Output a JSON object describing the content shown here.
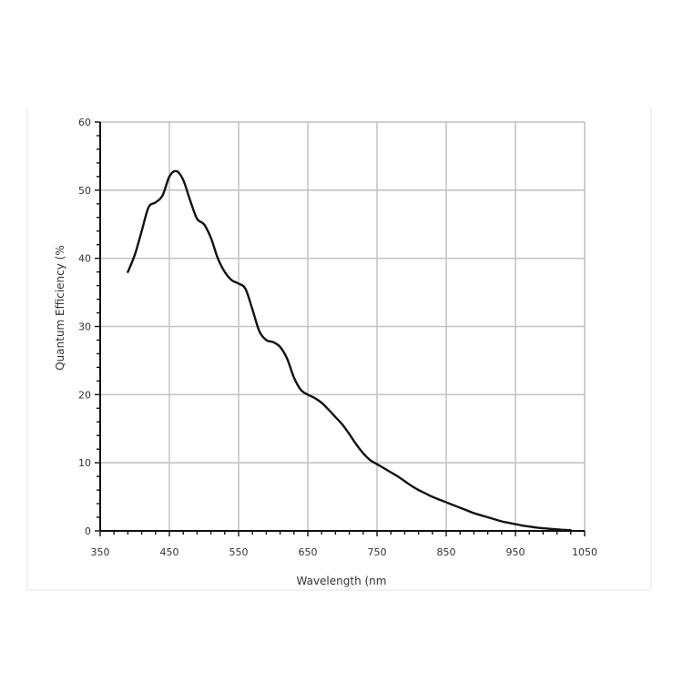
{
  "chart_data": {
    "type": "line",
    "title": "",
    "xlabel": "Wavelength (nm",
    "ylabel": "Quantum Efficiency (%",
    "xlim": [
      350,
      1050
    ],
    "ylim": [
      0,
      60
    ],
    "x_ticks": [
      350,
      450,
      550,
      650,
      750,
      850,
      950,
      1050
    ],
    "y_ticks": [
      0,
      10,
      20,
      30,
      40,
      50,
      60
    ],
    "grid": true,
    "legend": "none",
    "series": [
      {
        "color": "#111111",
        "points": [
          [
            390,
            38.0
          ],
          [
            400,
            40.5
          ],
          [
            410,
            44.0
          ],
          [
            420,
            47.5
          ],
          [
            430,
            48.2
          ],
          [
            440,
            49.2
          ],
          [
            450,
            52.0
          ],
          [
            460,
            52.8
          ],
          [
            470,
            51.5
          ],
          [
            480,
            48.5
          ],
          [
            490,
            45.8
          ],
          [
            500,
            45.0
          ],
          [
            510,
            43.0
          ],
          [
            520,
            40.0
          ],
          [
            530,
            38.0
          ],
          [
            540,
            36.8
          ],
          [
            550,
            36.3
          ],
          [
            560,
            35.5
          ],
          [
            570,
            32.5
          ],
          [
            580,
            29.3
          ],
          [
            590,
            28.0
          ],
          [
            600,
            27.7
          ],
          [
            610,
            27.0
          ],
          [
            620,
            25.3
          ],
          [
            630,
            22.5
          ],
          [
            640,
            20.7
          ],
          [
            650,
            20.0
          ],
          [
            660,
            19.5
          ],
          [
            670,
            18.8
          ],
          [
            680,
            17.8
          ],
          [
            690,
            16.7
          ],
          [
            700,
            15.6
          ],
          [
            710,
            14.2
          ],
          [
            720,
            12.7
          ],
          [
            730,
            11.4
          ],
          [
            740,
            10.4
          ],
          [
            750,
            9.8
          ],
          [
            760,
            9.2
          ],
          [
            770,
            8.6
          ],
          [
            780,
            8.0
          ],
          [
            790,
            7.3
          ],
          [
            800,
            6.6
          ],
          [
            810,
            6.0
          ],
          [
            820,
            5.5
          ],
          [
            830,
            5.0
          ],
          [
            840,
            4.6
          ],
          [
            850,
            4.2
          ],
          [
            860,
            3.8
          ],
          [
            870,
            3.4
          ],
          [
            880,
            3.0
          ],
          [
            890,
            2.6
          ],
          [
            900,
            2.3
          ],
          [
            910,
            2.0
          ],
          [
            920,
            1.7
          ],
          [
            930,
            1.4
          ],
          [
            940,
            1.2
          ],
          [
            950,
            1.0
          ],
          [
            960,
            0.8
          ],
          [
            970,
            0.65
          ],
          [
            980,
            0.5
          ],
          [
            990,
            0.4
          ],
          [
            1000,
            0.3
          ],
          [
            1010,
            0.22
          ],
          [
            1020,
            0.15
          ],
          [
            1030,
            0.1
          ]
        ]
      }
    ]
  }
}
